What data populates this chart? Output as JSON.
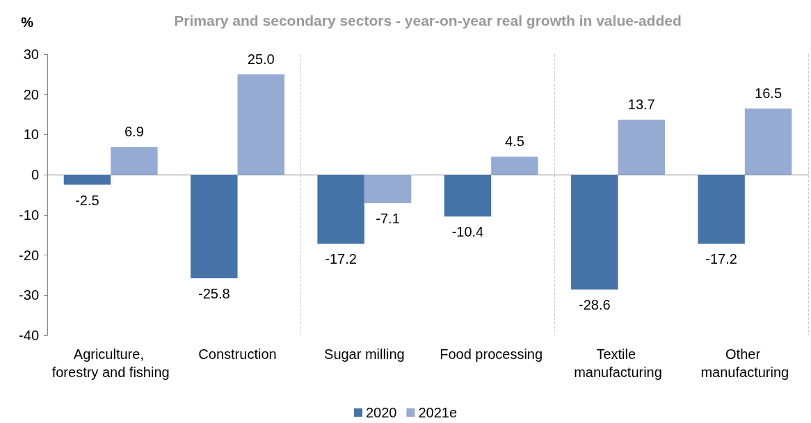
{
  "chart_data": {
    "type": "bar",
    "title": "Primary and secondary sectors - year-on-year real growth in value-added",
    "ylabel": "%",
    "categories": [
      "Agriculture, forestry and fishing",
      "Construction",
      "Sugar milling",
      "Food processing",
      "Textile manufacturing",
      "Other manufacturing"
    ],
    "series": [
      {
        "name": "2020",
        "color": "#4573a7",
        "values": [
          -2.5,
          -25.8,
          -17.2,
          -10.4,
          -28.6,
          -17.2
        ]
      },
      {
        "name": "2021e",
        "color": "#95abd3",
        "values": [
          6.9,
          25.0,
          -7.1,
          4.5,
          13.7,
          16.5
        ],
        "value_labels": [
          "6.9",
          "25.0",
          "-7.1",
          "4.5",
          "13.7",
          "16.5"
        ]
      }
    ],
    "ylim": [
      -40,
      30
    ],
    "yticks": [
      -40,
      -30,
      -20,
      -10,
      0,
      10,
      20,
      30
    ],
    "grid": "x",
    "legend": "bottom",
    "data_labels": true
  }
}
